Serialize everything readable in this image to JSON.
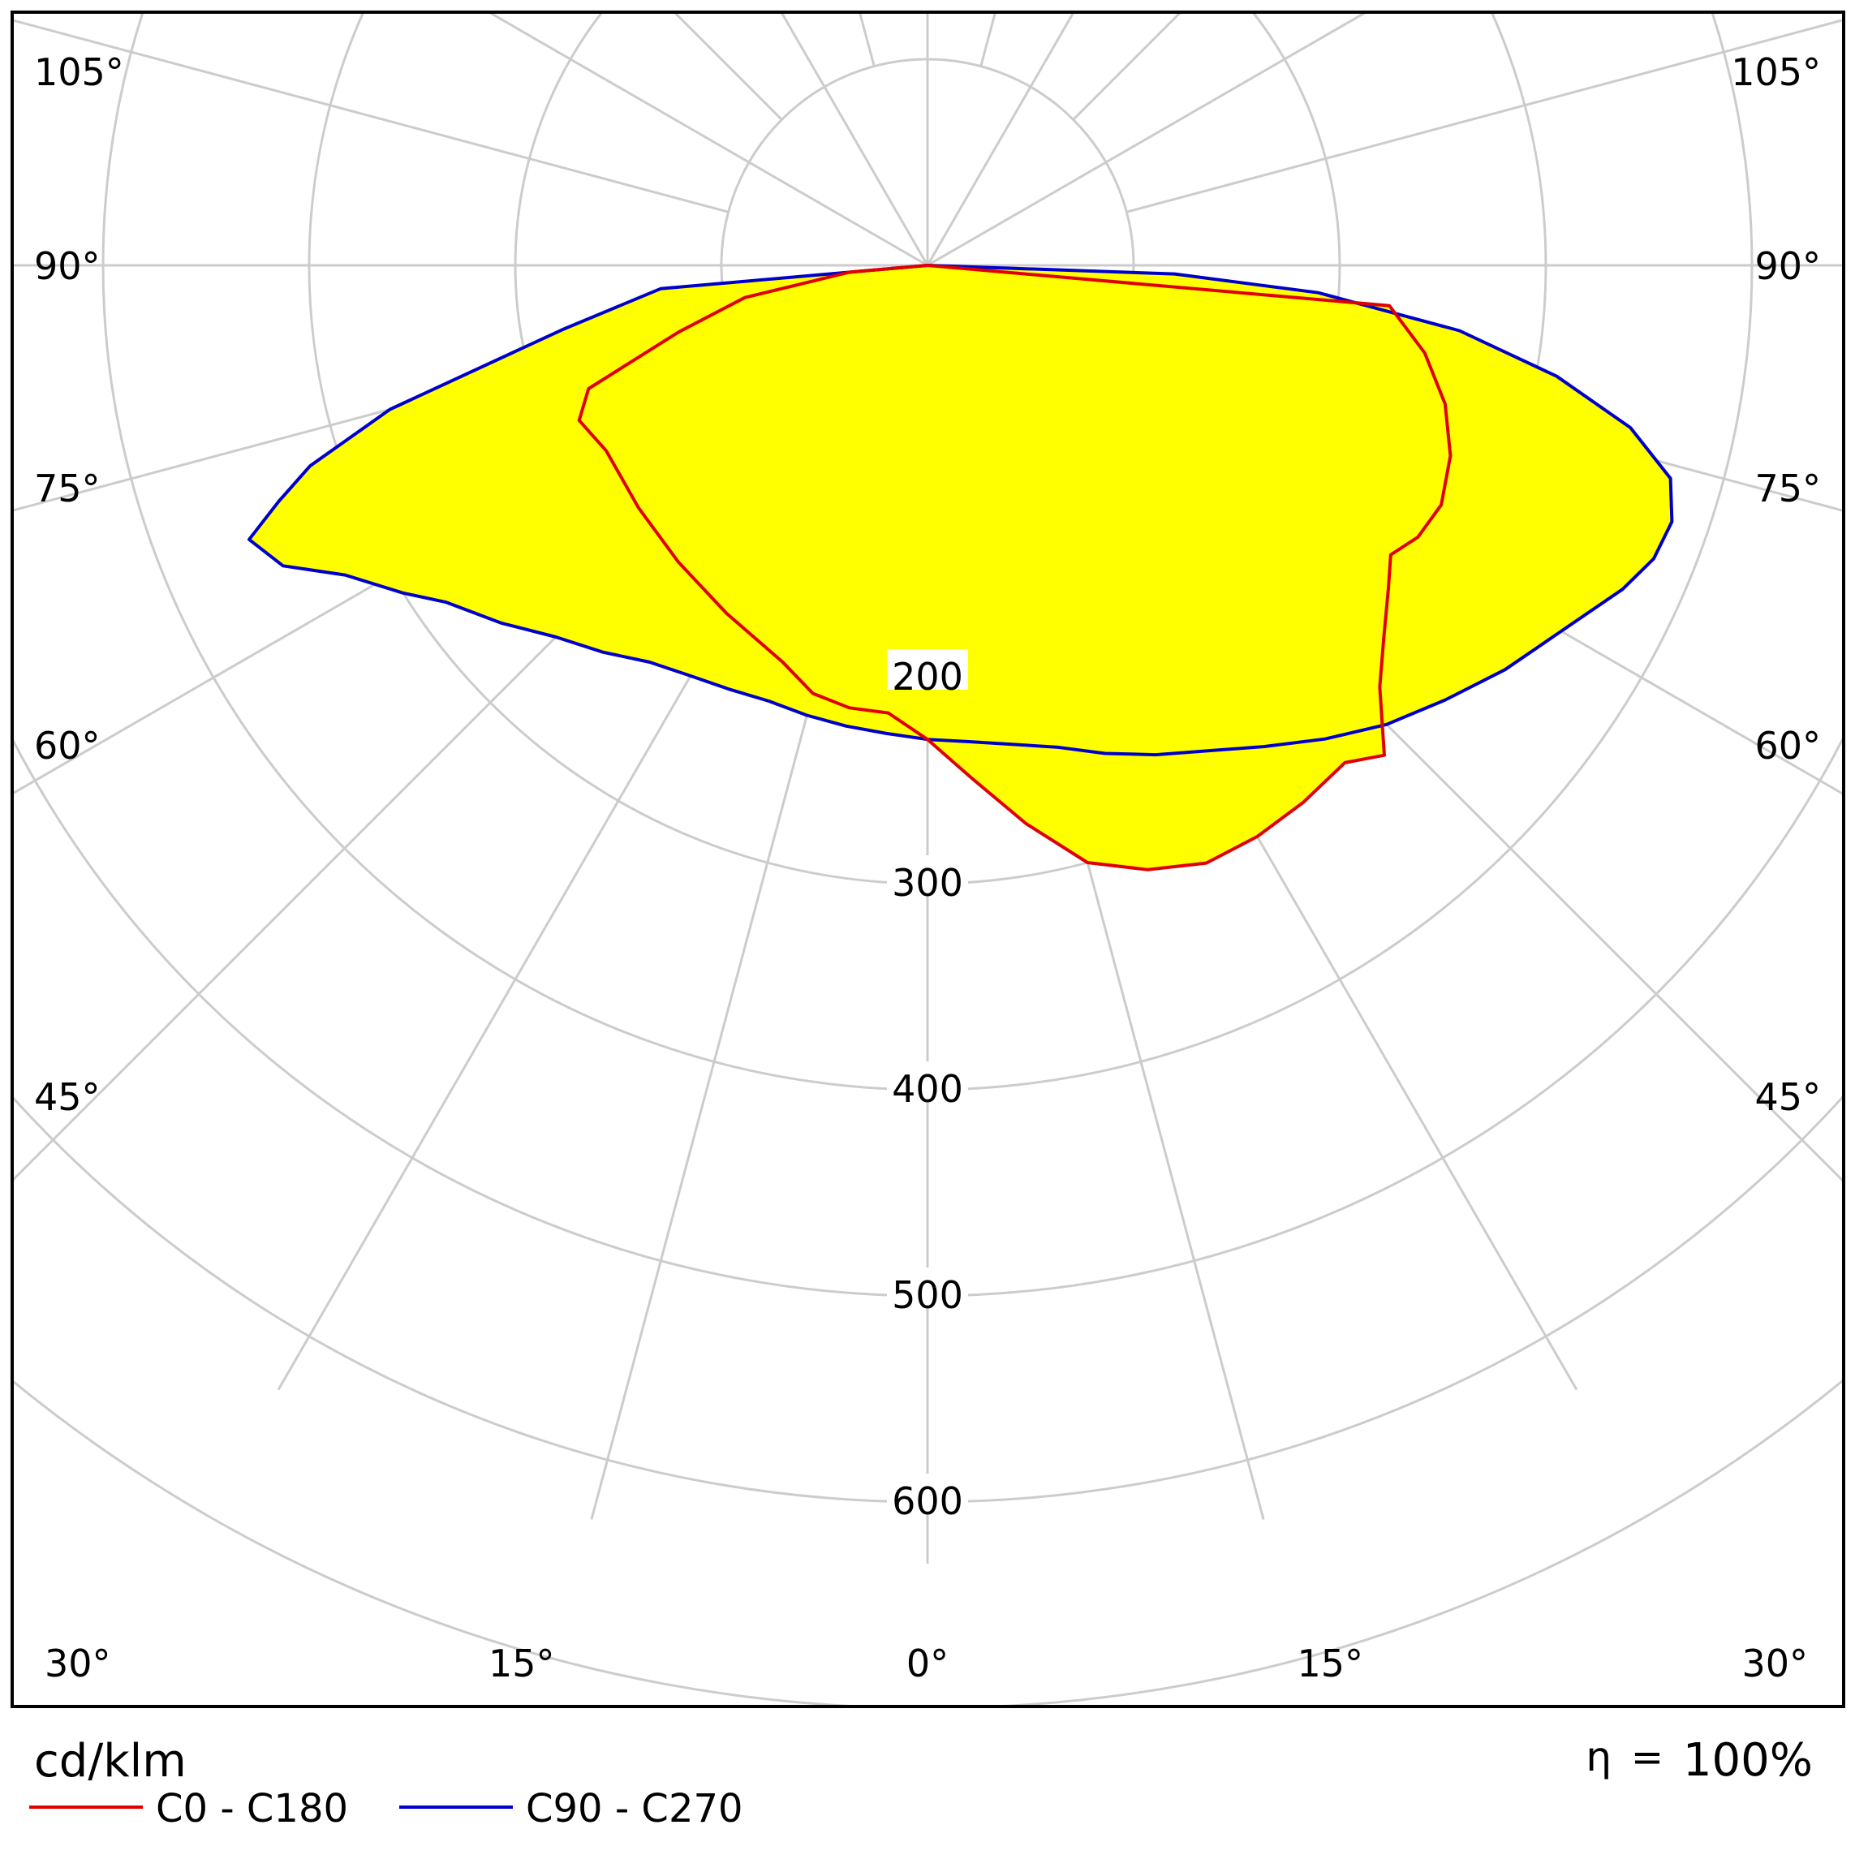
{
  "chart_data": {
    "type": "polar",
    "unit_label": "cd/klm",
    "efficiency_symbol": "η",
    "efficiency_equals": "=",
    "efficiency_value": "100%",
    "radial_ticks": [
      200,
      300,
      400,
      500,
      600
    ],
    "radial_max": 700,
    "angle_labels_left": [
      "105°",
      "90°",
      "75°",
      "60°",
      "45°",
      "30°",
      "15°"
    ],
    "angle_labels_right": [
      "105°",
      "90°",
      "75°",
      "60°",
      "45°",
      "30°",
      "15°"
    ],
    "angle_label_bottom": "0°",
    "grid": true,
    "fill_color": "#ffff00",
    "series": [
      {
        "name": "C0 - C180",
        "color": "#e00000",
        "points": [
          [
            -90,
            0
          ],
          [
            -85,
            38
          ],
          [
            -80,
            90
          ],
          [
            -75,
            125
          ],
          [
            -70,
            175
          ],
          [
            -66,
            185
          ],
          [
            -60,
            180
          ],
          [
            -50,
            183
          ],
          [
            -40,
            188
          ],
          [
            -30,
            195
          ],
          [
            -20,
            205
          ],
          [
            -15,
            215
          ],
          [
            -10,
            218
          ],
          [
            -5,
            218
          ],
          [
            0,
            230
          ],
          [
            5,
            250
          ],
          [
            10,
            275
          ],
          [
            15,
            300
          ],
          [
            20,
            312
          ],
          [
            25,
            320
          ],
          [
            30,
            320
          ],
          [
            35,
            318
          ],
          [
            40,
            315
          ],
          [
            43,
            325
          ],
          [
            47,
            300
          ],
          [
            51,
            285
          ],
          [
            55,
            273
          ],
          [
            58,
            265
          ],
          [
            61,
            272
          ],
          [
            65,
            275
          ],
          [
            70,
            270
          ],
          [
            75,
            260
          ],
          [
            80,
            245
          ],
          [
            85,
            225
          ],
          [
            90,
            0
          ]
        ]
      },
      {
        "name": "C90 - C270",
        "color": "#0000cc",
        "points": [
          [
            -90,
            0
          ],
          [
            -85,
            130
          ],
          [
            -80,
            180
          ],
          [
            -75,
            270
          ],
          [
            -72,
            315
          ],
          [
            -70,
            335
          ],
          [
            -68,
            355
          ],
          [
            -65,
            345
          ],
          [
            -62,
            320
          ],
          [
            -58,
            300
          ],
          [
            -55,
            285
          ],
          [
            -50,
            270
          ],
          [
            -45,
            255
          ],
          [
            -40,
            245
          ],
          [
            -35,
            235
          ],
          [
            -30,
            230
          ],
          [
            -25,
            227
          ],
          [
            -20,
            225
          ],
          [
            -15,
            226
          ],
          [
            -10,
            227
          ],
          [
            -5,
            228
          ],
          [
            0,
            230
          ],
          [
            5,
            232
          ],
          [
            10,
            236
          ],
          [
            15,
            242
          ],
          [
            20,
            252
          ],
          [
            25,
            262
          ],
          [
            30,
            272
          ],
          [
            35,
            285
          ],
          [
            40,
            300
          ],
          [
            45,
            315
          ],
          [
            50,
            328
          ],
          [
            55,
            342
          ],
          [
            60,
            355
          ],
          [
            65,
            372
          ],
          [
            68,
            380
          ],
          [
            71,
            382
          ],
          [
            74,
            375
          ],
          [
            77,
            350
          ],
          [
            80,
            310
          ],
          [
            83,
            260
          ],
          [
            86,
            190
          ],
          [
            88,
            120
          ],
          [
            90,
            0
          ]
        ]
      }
    ]
  }
}
